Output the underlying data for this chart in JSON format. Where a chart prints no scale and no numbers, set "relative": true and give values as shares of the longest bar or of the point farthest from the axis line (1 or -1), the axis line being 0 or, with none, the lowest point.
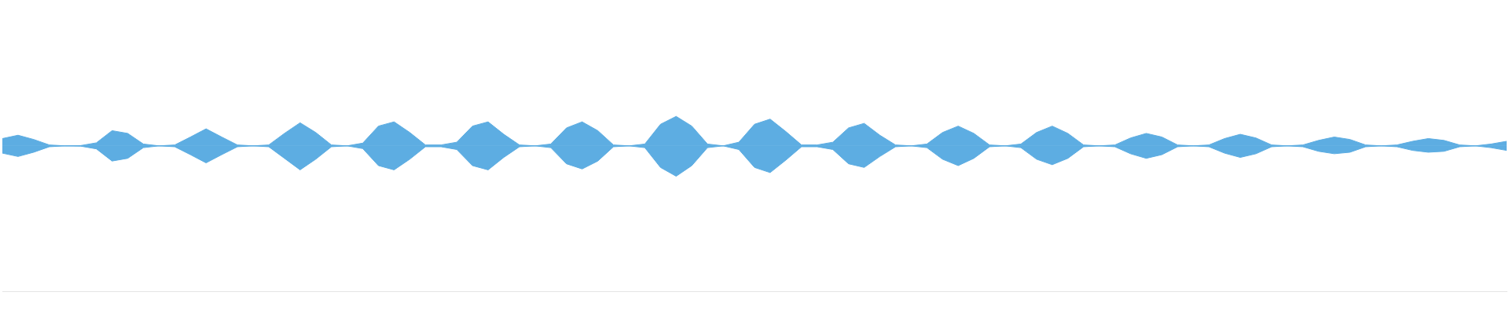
{
  "chart_data": {
    "type": "area",
    "relative": true,
    "legend": false,
    "ref_lines": [
      {
        "axis": "y",
        "value": 0,
        "color": "#5dade2"
      }
    ],
    "categories": [
      null,
      null,
      null,
      null,
      null,
      null,
      null,
      null,
      null,
      null,
      null,
      null,
      null,
      null,
      null,
      null,
      null,
      null,
      null,
      null,
      null,
      null,
      null,
      null,
      null,
      null,
      null,
      null,
      null,
      null,
      null,
      null,
      null,
      null,
      null,
      null,
      null,
      null,
      null,
      null,
      null,
      null,
      null,
      null,
      null,
      null,
      null,
      null,
      null,
      null,
      null,
      null,
      null,
      null,
      null,
      null,
      null,
      null,
      null,
      null,
      null,
      null,
      null,
      null,
      null,
      null,
      null,
      null,
      null,
      null,
      null,
      null,
      null,
      null,
      null,
      null,
      null,
      null,
      null,
      null,
      null,
      null,
      null,
      null,
      null,
      null,
      null,
      null,
      null,
      null,
      null,
      null,
      null,
      null,
      null,
      null,
      null
    ],
    "series": [
      {
        "color": "#5dade2",
        "values": [
          0.24,
          0.35,
          0.21,
          0.03,
          0,
          0.01,
          0.1,
          0.5,
          0.41,
          0.06,
          0,
          0.03,
          0.29,
          0.56,
          0.29,
          0.03,
          0,
          0.03,
          0.41,
          0.76,
          0.44,
          0.03,
          0,
          0.09,
          0.65,
          0.79,
          0.44,
          0.03,
          0.03,
          0.12,
          0.65,
          0.79,
          0.38,
          0.03,
          0,
          0.06,
          0.59,
          0.79,
          0.5,
          0.03,
          0,
          0.06,
          0.71,
          0.97,
          0.65,
          0.06,
          0,
          0.12,
          0.71,
          0.88,
          0.47,
          0.03,
          0.03,
          0.12,
          0.59,
          0.74,
          0.35,
          0.03,
          0,
          0.06,
          0.44,
          0.65,
          0.41,
          0.03,
          0,
          0.06,
          0.44,
          0.65,
          0.41,
          0.03,
          0,
          0.03,
          0.26,
          0.41,
          0.29,
          0.03,
          0,
          0.03,
          0.24,
          0.38,
          0.26,
          0.03,
          0,
          0.03,
          0.18,
          0.29,
          0.21,
          0.03,
          0,
          0.03,
          0.15,
          0.24,
          0.18,
          0.03,
          0,
          0.06,
          0.15
        ]
      },
      {
        "color": "#5dade2",
        "values": [
          -0.24,
          -0.35,
          -0.21,
          -0.03,
          0,
          -0.01,
          -0.1,
          -0.5,
          -0.41,
          -0.06,
          0,
          -0.03,
          -0.29,
          -0.56,
          -0.29,
          -0.03,
          0,
          -0.03,
          -0.41,
          -0.79,
          -0.44,
          -0.03,
          0,
          -0.09,
          -0.65,
          -0.79,
          -0.44,
          -0.03,
          -0.03,
          -0.12,
          -0.65,
          -0.79,
          -0.38,
          -0.03,
          0,
          -0.06,
          -0.59,
          -0.76,
          -0.5,
          -0.03,
          0,
          -0.06,
          -0.71,
          -1,
          -0.65,
          -0.06,
          0,
          -0.12,
          -0.71,
          -0.88,
          -0.47,
          -0.03,
          -0.03,
          -0.12,
          -0.59,
          -0.71,
          -0.35,
          -0.03,
          0,
          -0.06,
          -0.44,
          -0.65,
          -0.41,
          -0.03,
          0,
          -0.06,
          -0.44,
          -0.62,
          -0.41,
          -0.03,
          0,
          -0.03,
          -0.26,
          -0.41,
          -0.29,
          -0.03,
          0,
          -0.03,
          -0.24,
          -0.38,
          -0.26,
          -0.03,
          0,
          -0.03,
          -0.18,
          -0.26,
          -0.21,
          -0.03,
          0,
          -0.03,
          -0.15,
          -0.21,
          -0.18,
          -0.03,
          0,
          -0.06,
          -0.15
        ]
      }
    ]
  }
}
